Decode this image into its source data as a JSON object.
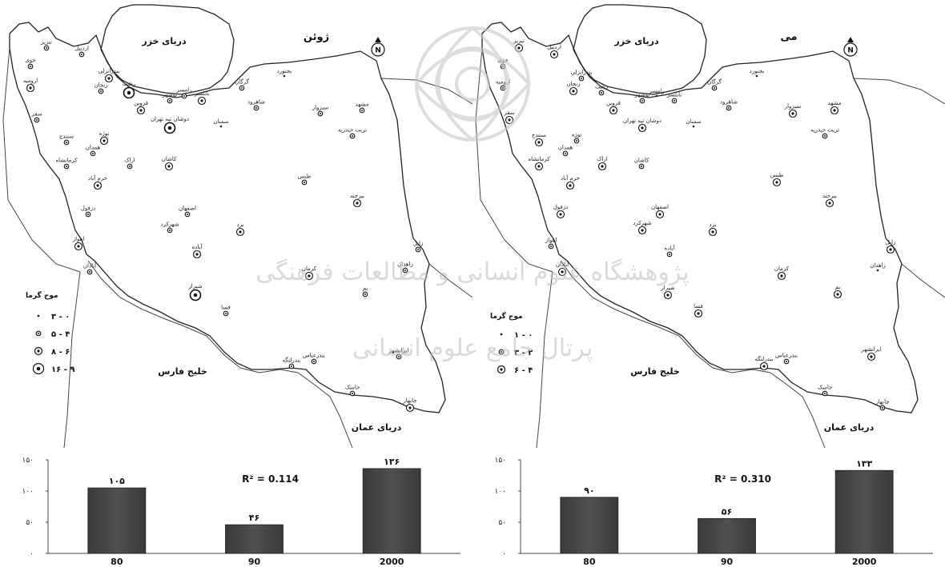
{
  "panels": [
    {
      "month": "ژوئن",
      "caspian": "دریای خزر",
      "persian_gulf": "خلیج فارس",
      "oman_sea": "دریای عمان",
      "north_symbol": "N",
      "legend": {
        "title": "موج گرما",
        "items": [
          {
            "label": "۳ - ۰",
            "size": 1
          },
          {
            "label": "۵ - ۴",
            "size": 2
          },
          {
            "label": "۸ - ۶",
            "size": 3
          },
          {
            "label": "۱۶ - ۹",
            "size": 4
          }
        ]
      },
      "cities": [
        {
          "name": "خوی",
          "cls": 2
        },
        {
          "name": "تبریز",
          "cls": 2
        },
        {
          "name": "اردبیل",
          "cls": 2
        },
        {
          "name": "ارومیه",
          "cls": 3
        },
        {
          "name": "بندرانزلی",
          "cls": 3
        },
        {
          "name": "رشت",
          "cls": 4
        },
        {
          "name": "زنجان",
          "cls": 2
        },
        {
          "name": "رامسر",
          "cls": 2
        },
        {
          "name": "نوشهر",
          "cls": 2
        },
        {
          "name": "بابلسر",
          "cls": 3
        },
        {
          "name": "گرگان",
          "cls": 2
        },
        {
          "name": "بجنورد",
          "cls": 1
        },
        {
          "name": "قزوین",
          "cls": 3
        },
        {
          "name": "شاهرود",
          "cls": 2
        },
        {
          "name": "سبزوار",
          "cls": 2
        },
        {
          "name": "مشهد",
          "cls": 2
        },
        {
          "name": "سقز",
          "cls": 2
        },
        {
          "name": "دوشان تپه تهران",
          "cls": 4
        },
        {
          "name": "سمنان",
          "cls": 1
        },
        {
          "name": "تربت حیدریه",
          "cls": 2
        },
        {
          "name": "سنندج",
          "cls": 2
        },
        {
          "name": "نوژه",
          "cls": 3
        },
        {
          "name": "همدان",
          "cls": 2
        },
        {
          "name": "کرمانشاه",
          "cls": 2
        },
        {
          "name": "اراک",
          "cls": 2
        },
        {
          "name": "کاشان",
          "cls": 3
        },
        {
          "name": "طبس",
          "cls": 2
        },
        {
          "name": "خرم آباد",
          "cls": 3
        },
        {
          "name": "بیرجند",
          "cls": 3
        },
        {
          "name": "دزفول",
          "cls": 2
        },
        {
          "name": "اصفهان",
          "cls": 2
        },
        {
          "name": "شهرکرد",
          "cls": 2
        },
        {
          "name": "یزد",
          "cls": 3
        },
        {
          "name": "اهواز",
          "cls": 3
        },
        {
          "name": "آباده",
          "cls": 3
        },
        {
          "name": "آبادان",
          "cls": 2
        },
        {
          "name": "زابل",
          "cls": 2
        },
        {
          "name": "کرمان",
          "cls": 3
        },
        {
          "name": "زاهدان",
          "cls": 2
        },
        {
          "name": "شیراز",
          "cls": 4
        },
        {
          "name": "فسا",
          "cls": 2
        },
        {
          "name": "بم",
          "cls": 2
        },
        {
          "name": "بندرعباس",
          "cls": 2
        },
        {
          "name": "بندرلنگه",
          "cls": 2
        },
        {
          "name": "ایرانشهر",
          "cls": 2
        },
        {
          "name": "جاسک",
          "cls": 2
        },
        {
          "name": "چابهار",
          "cls": 3
        }
      ],
      "chart_data": {
        "type": "bar",
        "categories": [
          "80",
          "90",
          "2000"
        ],
        "values": [
          105,
          46,
          136
        ],
        "value_labels": [
          "۱۰۵",
          "۴۶",
          "۱۳۶"
        ],
        "y_ticks": [
          "۰",
          "۵۰",
          "۱۰۰",
          "۱۵۰"
        ],
        "ylim": [
          0,
          150
        ],
        "annotation": "R² = 0.114",
        "bar_color": "#505050"
      }
    },
    {
      "month": "می",
      "caspian": "دریای خزر",
      "persian_gulf": "خلیج فارس",
      "oman_sea": "دریای عمان",
      "north_symbol": "N",
      "legend": {
        "title": "موج گرما",
        "items": [
          {
            "label": "۱ - ۰",
            "size": 1
          },
          {
            "label": "۳ - ۲",
            "size": 2
          },
          {
            "label": "۶ - ۴",
            "size": 3
          }
        ]
      },
      "cities": [
        {
          "name": "خوی",
          "cls": 2
        },
        {
          "name": "تبریز",
          "cls": 3
        },
        {
          "name": "اردبیل",
          "cls": 3
        },
        {
          "name": "ارومیه",
          "cls": 2
        },
        {
          "name": "بندرانزلی",
          "cls": 2
        },
        {
          "name": "رشت",
          "cls": 2
        },
        {
          "name": "زنجان",
          "cls": 3
        },
        {
          "name": "رامسر",
          "cls": 1
        },
        {
          "name": "نوشهر",
          "cls": 2
        },
        {
          "name": "بابلسر",
          "cls": 2
        },
        {
          "name": "گرگان",
          "cls": 2
        },
        {
          "name": "بجنورد",
          "cls": 1
        },
        {
          "name": "قزوین",
          "cls": 3
        },
        {
          "name": "شاهرود",
          "cls": 2
        },
        {
          "name": "سبزوار",
          "cls": 3
        },
        {
          "name": "مشهد",
          "cls": 3
        },
        {
          "name": "سقز",
          "cls": 3
        },
        {
          "name": "دوشان تپه تهران",
          "cls": 3
        },
        {
          "name": "سمنان",
          "cls": 1
        },
        {
          "name": "تربت حیدریه",
          "cls": 2
        },
        {
          "name": "سنندج",
          "cls": 3
        },
        {
          "name": "نوژه",
          "cls": 2
        },
        {
          "name": "همدان",
          "cls": 2
        },
        {
          "name": "کرمانشاه",
          "cls": 3
        },
        {
          "name": "اراک",
          "cls": 3
        },
        {
          "name": "کاشان",
          "cls": 2
        },
        {
          "name": "طبس",
          "cls": 3
        },
        {
          "name": "خرم آباد",
          "cls": 3
        },
        {
          "name": "بیرجند",
          "cls": 3
        },
        {
          "name": "دزفول",
          "cls": 3
        },
        {
          "name": "اصفهان",
          "cls": 3
        },
        {
          "name": "شهرکرد",
          "cls": 3
        },
        {
          "name": "یزد",
          "cls": 3
        },
        {
          "name": "اهواز",
          "cls": 2
        },
        {
          "name": "آباده",
          "cls": 2
        },
        {
          "name": "آبادان",
          "cls": 3
        },
        {
          "name": "زابل",
          "cls": 3
        },
        {
          "name": "کرمان",
          "cls": 3
        },
        {
          "name": "زاهدان",
          "cls": 1
        },
        {
          "name": "شیراز",
          "cls": 3
        },
        {
          "name": "فسا",
          "cls": 3
        },
        {
          "name": "بم",
          "cls": 3
        },
        {
          "name": "بندرعباس",
          "cls": 2
        },
        {
          "name": "بندرلنگه",
          "cls": 3
        },
        {
          "name": "ایرانشهر",
          "cls": 3
        },
        {
          "name": "جاسک",
          "cls": 2
        },
        {
          "name": "چابهار",
          "cls": 2
        }
      ],
      "chart_data": {
        "type": "bar",
        "categories": [
          "80",
          "90",
          "2000"
        ],
        "values": [
          90,
          56,
          133
        ],
        "value_labels": [
          "۹۰",
          "۵۶",
          "۱۳۳"
        ],
        "y_ticks": [
          "۰",
          "۵۰",
          "۱۰۰",
          "۱۵۰"
        ],
        "ylim": [
          0,
          150
        ],
        "annotation": "R² = 0.310",
        "bar_color": "#505050"
      }
    }
  ],
  "watermark": {
    "line1": "پژوهشگاه علوم انسانی و مطالعات فرهنگی",
    "line2": "پرتال جامع علوم انسانی"
  }
}
